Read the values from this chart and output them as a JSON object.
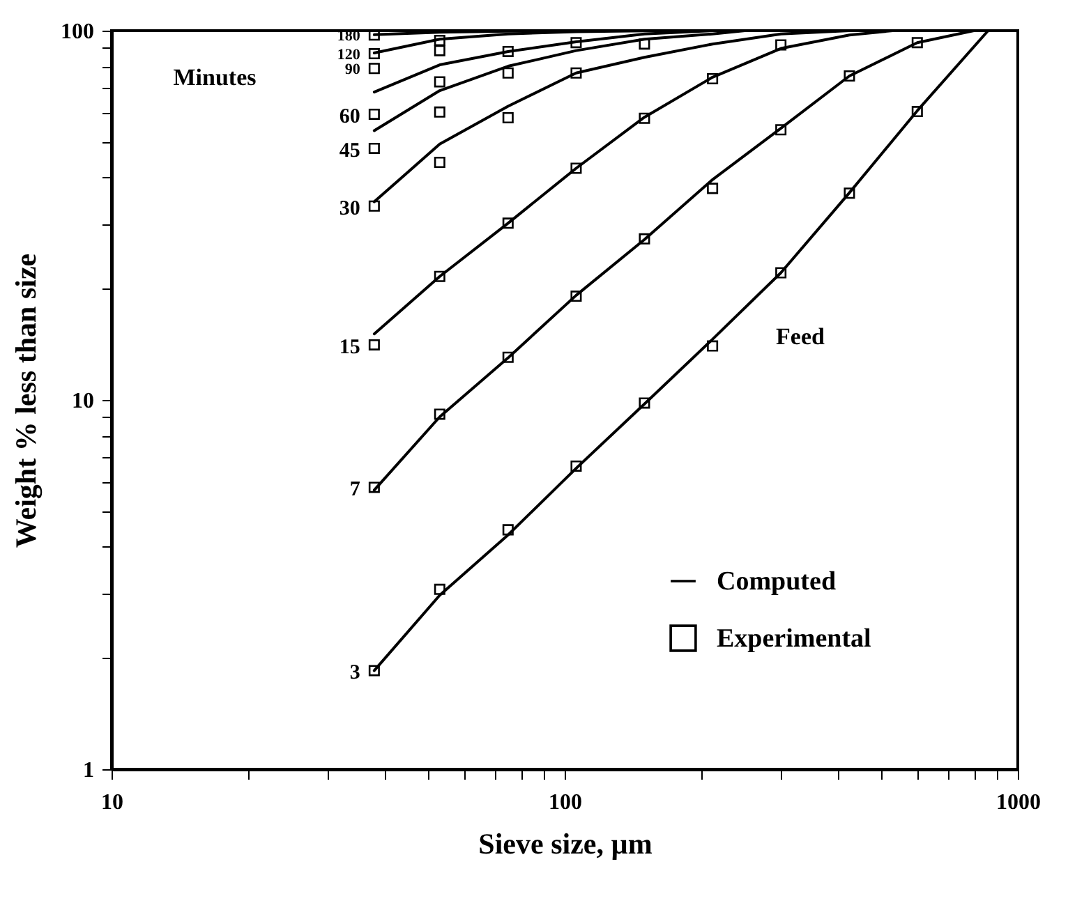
{
  "chart_data": {
    "type": "line",
    "xlabel": "Sieve size, µm",
    "ylabel": "Weight % less than size",
    "log": "xy",
    "xlim": [
      10,
      1000
    ],
    "ylim": [
      1,
      100
    ],
    "xticks": [
      10,
      {
        "value": 20,
        "label": null
      },
      {
        "value": 30,
        "label": null
      },
      {
        "value": 40,
        "label": null
      },
      {
        "value": 50,
        "label": null
      },
      {
        "value": 60,
        "label": null
      },
      {
        "value": 70,
        "label": null
      },
      {
        "value": 80,
        "label": null
      },
      {
        "value": 90,
        "label": null
      },
      100,
      {
        "value": 200,
        "label": null
      },
      {
        "value": 300,
        "label": null
      },
      {
        "value": 400,
        "label": null
      },
      {
        "value": 500,
        "label": null
      },
      {
        "value": 600,
        "label": null
      },
      {
        "value": 700,
        "label": null
      },
      {
        "value": 800,
        "label": null
      },
      {
        "value": 900,
        "label": null
      },
      1000
    ],
    "yticks": [
      1,
      {
        "value": 2,
        "label": null
      },
      {
        "value": 3,
        "label": null
      },
      {
        "value": 4,
        "label": null
      },
      {
        "value": 5,
        "label": null
      },
      {
        "value": 6,
        "label": null
      },
      {
        "value": 7,
        "label": null
      },
      {
        "value": 8,
        "label": null
      },
      {
        "value": 9,
        "label": null
      },
      10,
      {
        "value": 20,
        "label": null
      },
      {
        "value": 30,
        "label": null
      },
      {
        "value": 40,
        "label": null
      },
      {
        "value": 50,
        "label": null
      },
      {
        "value": 60,
        "label": null
      },
      {
        "value": 70,
        "label": null
      },
      {
        "value": 80,
        "label": null
      },
      {
        "value": 90,
        "label": null
      },
      100
    ],
    "grid": false,
    "legend": "bottom right",
    "series": [
      {
        "name": "Computed",
        "color": "#000000",
        "x": [
          38,
          53,
          75,
          100
        ],
        "values": [
          97.5,
          99,
          99.7,
          100
        ]
      },
      {
        "color": "#000000",
        "x": [
          38,
          53,
          75,
          106,
          150,
          212
        ],
        "values": [
          87,
          94.8,
          98,
          99.4,
          99.9,
          100
        ]
      },
      {
        "color": "#000000",
        "x": [
          38,
          53,
          75,
          106,
          150,
          212
        ],
        "values": [
          68.2,
          80.8,
          87.8,
          93.3,
          98,
          100
        ]
      },
      {
        "color": "#000000",
        "x": [
          38,
          53,
          75,
          106,
          150,
          212,
          250
        ],
        "values": [
          53.6,
          68.8,
          80.1,
          88.3,
          94.8,
          98,
          100
        ]
      },
      {
        "color": "#000000",
        "x": [
          38,
          53,
          75,
          106,
          150,
          212,
          300,
          425
        ],
        "values": [
          34.4,
          49.3,
          62.4,
          76.8,
          84.7,
          92,
          98,
          100
        ]
      },
      {
        "color": "#000000",
        "x": [
          38,
          53,
          75,
          106,
          150,
          212,
          300,
          425,
          530
        ],
        "values": [
          15.1,
          21.6,
          30.1,
          42.4,
          58.3,
          74.8,
          89.5,
          97.3,
          100
        ]
      },
      {
        "color": "#000000",
        "x": [
          38,
          53,
          75,
          106,
          150,
          212,
          300,
          425,
          600,
          800
        ],
        "values": [
          5.7,
          9,
          13,
          19.2,
          27.2,
          39.5,
          54.4,
          75.4,
          92.8,
          100
        ]
      },
      {
        "color": "#000000",
        "x": [
          38,
          53,
          75,
          106,
          150,
          212,
          300,
          425,
          600,
          860
        ],
        "values": [
          1.85,
          2.96,
          4.31,
          6.53,
          9.75,
          14.6,
          22.1,
          36.4,
          60.7,
          100
        ]
      },
      {
        "name": "Experimental",
        "type": "scatter",
        "marker": "square",
        "color": "#000000",
        "x": [
          38,
          38,
          38,
          38,
          38,
          38,
          38,
          38,
          38,
          53,
          53,
          53,
          53,
          53,
          53,
          53,
          53,
          75,
          75,
          75,
          75,
          75,
          75,
          106,
          106,
          106,
          106,
          106,
          150,
          150,
          150,
          150,
          212,
          212,
          212,
          300,
          300,
          300,
          425,
          425,
          600,
          600
        ],
        "values": [
          97.3,
          86.6,
          79,
          59.4,
          48,
          33.5,
          14.1,
          5.8,
          1.85,
          94.1,
          88.3,
          72.7,
          60.2,
          44,
          21.6,
          9.15,
          3.07,
          87.8,
          76.8,
          58.1,
          30.1,
          13.05,
          4.45,
          92.8,
          76.8,
          42.4,
          19.1,
          6.62,
          92,
          57.9,
          27.3,
          9.81,
          74.1,
          37.4,
          14,
          91.5,
          53.9,
          22.1,
          75.4,
          36.3,
          92.8,
          60.4
        ]
      }
    ],
    "annotations": [
      "Minutes",
      "180",
      "120",
      "90",
      "60",
      "45",
      "30",
      "15",
      "7",
      "3",
      "Feed"
    ]
  }
}
